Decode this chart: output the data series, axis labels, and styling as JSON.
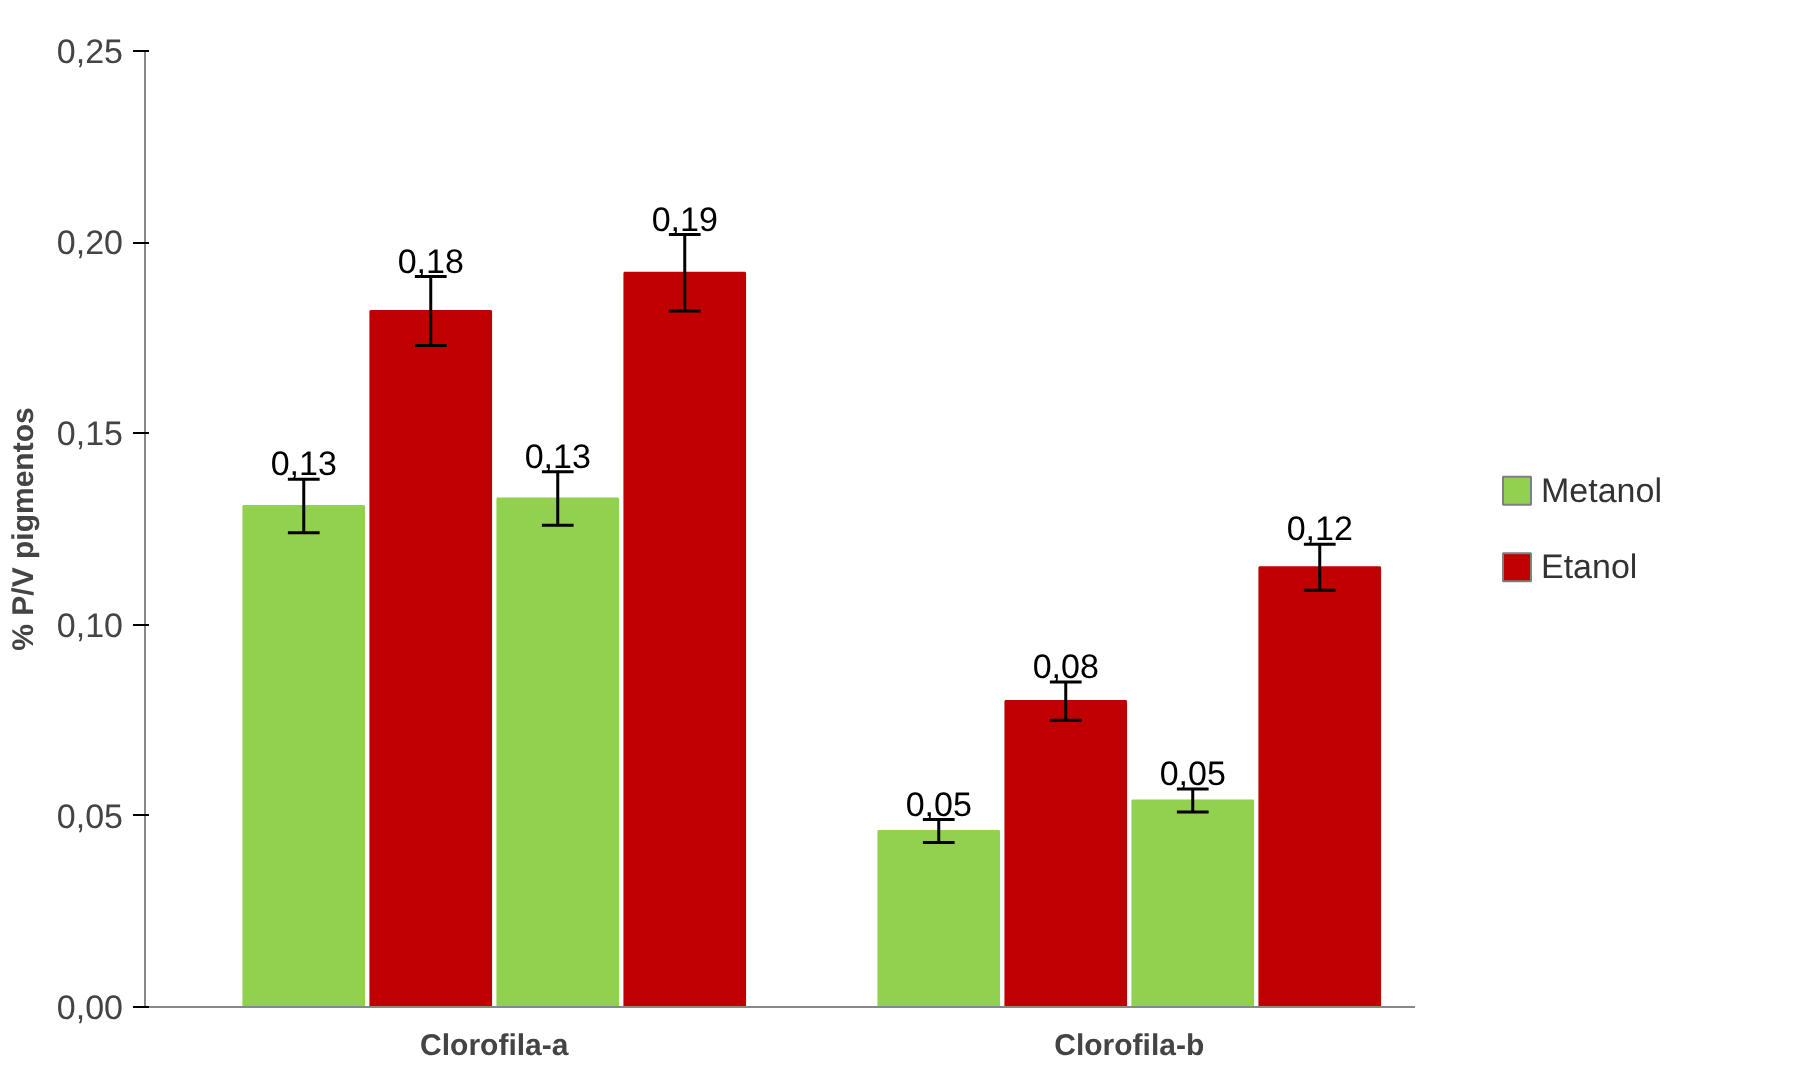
{
  "chart_data": {
    "type": "bar",
    "ylabel": "% P/V pigmentos",
    "categories": [
      "Clorofila-a",
      "Clorofila-b"
    ],
    "series": [
      {
        "name": "Metanol",
        "color": "#92d050",
        "values": [
          0.131,
          0.046
        ],
        "errors": [
          0.007,
          0.003
        ],
        "value_labels": [
          "0,13",
          "0,05"
        ]
      },
      {
        "name": "Etanol",
        "color": "#c00000",
        "values": [
          0.182,
          0.08
        ],
        "errors": [
          0.009,
          0.005
        ],
        "value_labels": [
          "0,18",
          "0,08"
        ]
      },
      {
        "color": "#92d050",
        "values": [
          0.133,
          0.054
        ],
        "errors": [
          0.007,
          0.003
        ],
        "value_labels": [
          "0,13",
          "0,05"
        ]
      },
      {
        "color": "#c00000",
        "values": [
          0.192,
          0.115
        ],
        "errors": [
          0.01,
          0.006
        ],
        "value_labels": [
          "0,19",
          "0,12"
        ]
      }
    ],
    "ylim": [
      0,
      0.25
    ],
    "yticks": [
      {
        "value": 0,
        "label": "0,00"
      },
      {
        "value": 0.05,
        "label": "0,05"
      },
      {
        "value": 0.1,
        "label": "0,10"
      },
      {
        "value": 0.15,
        "label": "0,15"
      },
      {
        "value": 0.2,
        "label": "0,20"
      },
      {
        "value": 0.25,
        "label": "0,25"
      }
    ],
    "grid": false,
    "legend": "right"
  }
}
